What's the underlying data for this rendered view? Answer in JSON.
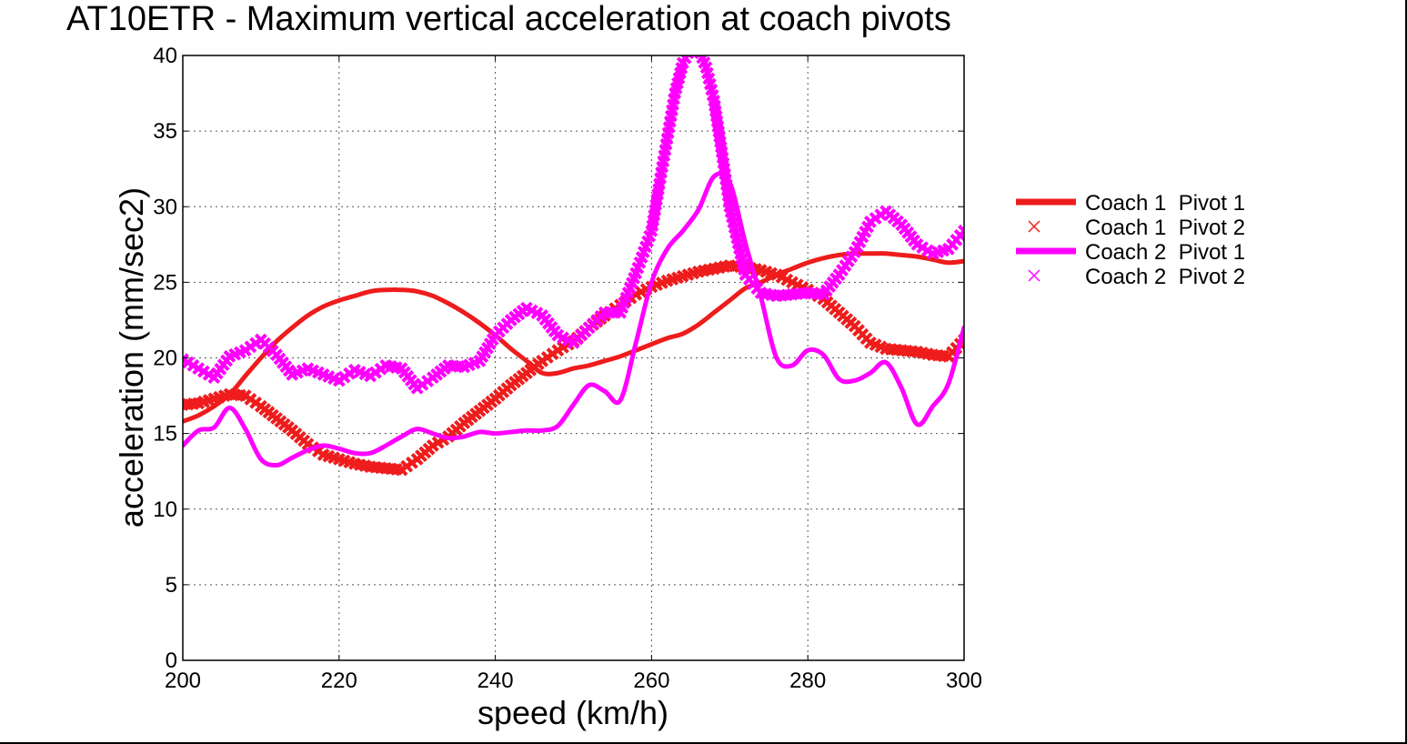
{
  "chart_data": {
    "type": "line",
    "title": "AT10ETR - Maximum vertical acceleration at coach pivots",
    "xlabel": "speed (km/h)",
    "ylabel": "acceleration (mm/sec2)",
    "xlim": [
      200,
      300
    ],
    "ylim": [
      0,
      40
    ],
    "xticks": [
      200,
      220,
      240,
      260,
      280,
      300
    ],
    "yticks": [
      0,
      5,
      10,
      15,
      20,
      25,
      30,
      35,
      40
    ],
    "grid": true,
    "legend_position": "right",
    "series": [
      {
        "name": "Coach 1  Pivot 1",
        "style": "line",
        "color": "#ee1c1c",
        "x": [
          200,
          202,
          204,
          206,
          208,
          210,
          212,
          214,
          216,
          218,
          220,
          222,
          224,
          226,
          228,
          230,
          232,
          234,
          236,
          238,
          240,
          242,
          244,
          246,
          248,
          250,
          252,
          254,
          256,
          258,
          260,
          262,
          264,
          266,
          268,
          270,
          272,
          274,
          276,
          278,
          280,
          282,
          284,
          286,
          288,
          290,
          292,
          294,
          296,
          298,
          300
        ],
        "y": [
          15.8,
          16.2,
          16.8,
          17.6,
          18.8,
          20.0,
          21.1,
          22.0,
          22.8,
          23.4,
          23.8,
          24.1,
          24.4,
          24.5,
          24.5,
          24.4,
          24.1,
          23.6,
          23.0,
          22.3,
          21.5,
          20.6,
          19.8,
          19.0,
          19.0,
          19.3,
          19.5,
          19.8,
          20.1,
          20.5,
          20.9,
          21.3,
          21.6,
          22.2,
          23.0,
          23.8,
          24.6,
          25.0,
          25.5,
          25.9,
          26.3,
          26.6,
          26.8,
          26.9,
          26.9,
          26.9,
          26.8,
          26.7,
          26.5,
          26.3,
          26.4
        ]
      },
      {
        "name": "Coach 1  Pivot 2",
        "style": "markers",
        "color": "#ee1c1c",
        "x": [
          200,
          202,
          204,
          206,
          208,
          210,
          212,
          214,
          216,
          218,
          220,
          222,
          224,
          226,
          228,
          230,
          232,
          234,
          236,
          238,
          240,
          242,
          244,
          246,
          248,
          250,
          252,
          254,
          256,
          258,
          260,
          262,
          264,
          266,
          268,
          270,
          272,
          274,
          276,
          278,
          280,
          282,
          284,
          286,
          288,
          290,
          292,
          294,
          296,
          298,
          300
        ],
        "y": [
          16.9,
          17.0,
          17.3,
          17.6,
          17.5,
          16.8,
          16.0,
          15.2,
          14.3,
          13.6,
          13.3,
          13.0,
          12.8,
          12.7,
          12.6,
          13.3,
          14.2,
          14.8,
          15.7,
          16.5,
          17.3,
          18.2,
          19.0,
          19.8,
          20.5,
          21.1,
          22.0,
          22.8,
          23.5,
          24.2,
          24.7,
          25.1,
          25.4,
          25.7,
          25.9,
          26.1,
          26.0,
          25.8,
          25.5,
          25.0,
          24.5,
          23.9,
          23.0,
          22.1,
          21.0,
          20.6,
          20.5,
          20.4,
          20.2,
          20.1,
          21.2
        ]
      },
      {
        "name": "Coach 2  Pivot 1",
        "style": "line",
        "color": "#ff00ff",
        "x": [
          200,
          202,
          204,
          206,
          208,
          210,
          212,
          214,
          216,
          218,
          220,
          222,
          224,
          226,
          228,
          230,
          232,
          234,
          236,
          238,
          240,
          242,
          244,
          246,
          248,
          250,
          252,
          254,
          256,
          258,
          260,
          262,
          264,
          266,
          268,
          270,
          272,
          274,
          276,
          278,
          280,
          282,
          284,
          286,
          288,
          290,
          292,
          294,
          296,
          298,
          300
        ],
        "y": [
          14.2,
          15.2,
          15.4,
          16.7,
          15.3,
          13.3,
          12.9,
          13.4,
          13.9,
          14.2,
          14.0,
          13.7,
          13.7,
          14.2,
          14.8,
          15.3,
          15.0,
          14.7,
          14.8,
          15.1,
          15.0,
          15.1,
          15.2,
          15.2,
          15.5,
          16.9,
          18.2,
          17.8,
          17.2,
          21.0,
          25.0,
          27.2,
          28.4,
          29.8,
          32.0,
          31.6,
          27.6,
          24.0,
          20.0,
          19.5,
          20.5,
          20.2,
          18.6,
          18.5,
          19.0,
          19.7,
          18.0,
          15.6,
          16.8,
          18.3,
          22.0
        ]
      },
      {
        "name": "Coach 2  Pivot 2",
        "style": "markers",
        "color": "#ff00ff",
        "x": [
          200,
          202,
          204,
          206,
          208,
          210,
          212,
          214,
          216,
          218,
          220,
          222,
          224,
          226,
          228,
          230,
          232,
          234,
          236,
          238,
          240,
          242,
          244,
          246,
          248,
          250,
          252,
          254,
          256,
          258,
          260,
          261,
          262,
          263,
          264,
          265,
          266,
          267,
          268,
          269,
          270,
          272,
          274,
          276,
          278,
          280,
          282,
          284,
          286,
          288,
          290,
          292,
          294,
          296,
          298,
          300
        ],
        "y": [
          19.9,
          19.3,
          18.7,
          20.1,
          20.5,
          21.2,
          20.2,
          18.9,
          19.3,
          18.9,
          18.5,
          19.2,
          18.8,
          19.5,
          19.3,
          18.0,
          18.7,
          19.5,
          19.4,
          19.8,
          21.5,
          22.5,
          23.3,
          22.8,
          21.5,
          21.0,
          22.0,
          23.0,
          23.0,
          25.6,
          28.4,
          31.5,
          34.5,
          37.5,
          39.5,
          40.5,
          40.5,
          39.2,
          37.0,
          33.6,
          30.0,
          25.5,
          24.3,
          24.1,
          24.2,
          24.3,
          24.2,
          25.5,
          27.0,
          29.0,
          29.7,
          28.8,
          27.5,
          26.9,
          27.2,
          28.4
        ]
      }
    ]
  }
}
